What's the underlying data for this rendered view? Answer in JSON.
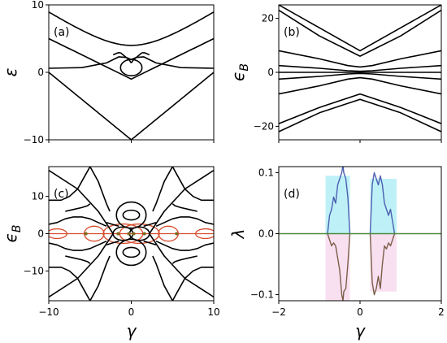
{
  "chart_data": [
    {
      "panel": "(a)",
      "type": "line",
      "ylabel": "ε",
      "xlabel": "",
      "xlim": [
        -10,
        10
      ],
      "ylim": [
        -10,
        10
      ],
      "yticks": [
        "-10",
        "0",
        "10"
      ],
      "xticks": [],
      "series": [
        {
          "kind": "hyperbola",
          "a": 4.0,
          "b": 0.4,
          "sign": 1
        },
        {
          "kind": "line_abs",
          "slope": 0.8,
          "offset": -10
        },
        {
          "kind": "line_abs",
          "slope": 0.6,
          "offset": -1
        },
        {
          "kind": "points",
          "x": [
            -10,
            -6,
            -3,
            -1.5,
            -0.6,
            0,
            0.6,
            1.5,
            3,
            6,
            10
          ],
          "y": [
            0.6,
            0.7,
            1.4,
            2.3,
            2.2,
            1.9,
            2.2,
            2.3,
            1.4,
            0.7,
            0.6
          ]
        },
        {
          "kind": "loop",
          "cx": 0,
          "cy": 0.7,
          "rx": 1.3,
          "ry": 1.2
        },
        {
          "kind": "points",
          "x": [
            -1.3,
            -0.8,
            -0.3,
            0
          ],
          "y": [
            2.9,
            2.4,
            1.9,
            1.4
          ]
        },
        {
          "kind": "points",
          "x": [
            1.3,
            0.8,
            0.3,
            0
          ],
          "y": [
            2.9,
            2.4,
            1.9,
            1.4
          ]
        },
        {
          "kind": "points",
          "x": [
            -2.2,
            -1.6,
            -1.3
          ],
          "y": [
            2.6,
            2.9,
            2.9
          ]
        },
        {
          "kind": "points",
          "x": [
            2.2,
            1.6,
            1.3
          ],
          "y": [
            2.6,
            2.9,
            2.9
          ]
        }
      ]
    },
    {
      "panel": "(b)",
      "type": "line",
      "ylabel": "ϵB",
      "xlabel": "",
      "xlim": [
        -2,
        2
      ],
      "ylim": [
        -25,
        25
      ],
      "yticks": [
        "-20",
        "0",
        "20"
      ],
      "xticks": [],
      "series": [
        {
          "kind": "points",
          "x": [
            -2,
            -1,
            0,
            1,
            2
          ],
          "y": [
            25,
            16.5,
            8,
            16.5,
            25
          ]
        },
        {
          "kind": "points",
          "x": [
            -2,
            -1,
            0,
            1,
            2
          ],
          "y": [
            23,
            13.5,
            6,
            13.5,
            23
          ]
        },
        {
          "kind": "points",
          "x": [
            -2,
            -1,
            -0.3,
            0,
            0.3,
            1,
            2
          ],
          "y": [
            8,
            5,
            2.5,
            2,
            2.5,
            5,
            8
          ]
        },
        {
          "kind": "points",
          "x": [
            -2,
            -1,
            -0.3,
            0,
            0.3,
            1,
            2
          ],
          "y": [
            2.5,
            1.5,
            0.6,
            0.4,
            0.6,
            1.5,
            2.5
          ]
        },
        {
          "kind": "points",
          "x": [
            -2,
            2
          ],
          "y": [
            0,
            0
          ]
        },
        {
          "kind": "points",
          "x": [
            -2,
            -1,
            -0.3,
            0,
            0.3,
            1,
            2
          ],
          "y": [
            -2.5,
            -1.5,
            -0.6,
            -0.4,
            -0.6,
            -1.5,
            -2.5
          ]
        },
        {
          "kind": "points",
          "x": [
            -2,
            -1,
            -0.3,
            0,
            0.3,
            1,
            2
          ],
          "y": [
            -8,
            -5,
            -2.5,
            -2,
            -2.5,
            -5,
            -8
          ]
        },
        {
          "kind": "points",
          "x": [
            -2,
            -1,
            0,
            1,
            2
          ],
          "y": [
            -19,
            -13,
            -8,
            -13,
            -19
          ]
        },
        {
          "kind": "points",
          "x": [
            -2,
            -1,
            0,
            1,
            2
          ],
          "y": [
            -22,
            -15,
            -10,
            -15,
            -22
          ]
        }
      ]
    },
    {
      "panel": "(c)",
      "type": "line",
      "ylabel": "ϵB",
      "xlabel": "γ",
      "xlim": [
        -10,
        10
      ],
      "ylim": [
        -18,
        18
      ],
      "yticks": [
        "-10",
        "0",
        "10"
      ],
      "xticks": [
        "-10",
        "0",
        "10"
      ],
      "series": [
        {
          "kind": "points",
          "x": [
            -10,
            -6.5,
            -4,
            -2.8,
            -2.2
          ],
          "y": [
            -17,
            -12,
            -6,
            -2,
            0
          ]
        },
        {
          "kind": "points",
          "x": [
            -10,
            -6.5,
            -4,
            -2.8,
            -2.2
          ],
          "y": [
            17,
            12,
            6,
            2,
            0
          ]
        },
        {
          "kind": "points",
          "x": [
            10,
            6.5,
            4,
            2.8,
            2.2
          ],
          "y": [
            -17,
            -12,
            -6,
            -2,
            0
          ]
        },
        {
          "kind": "points",
          "x": [
            10,
            6.5,
            4,
            2.8,
            2.2
          ],
          "y": [
            17,
            12,
            6,
            2,
            0
          ]
        },
        {
          "kind": "points",
          "x": [
            -10,
            -8.5,
            -7.5,
            -6.5,
            -6,
            -5.5,
            -5
          ],
          "y": [
            9,
            9,
            10,
            12,
            14,
            16,
            18
          ]
        },
        {
          "kind": "points",
          "x": [
            10,
            8.5,
            7.5,
            6.5,
            6,
            5.5,
            5
          ],
          "y": [
            9,
            9,
            10,
            12,
            14,
            16,
            18
          ]
        },
        {
          "kind": "points",
          "x": [
            -10,
            -8.5,
            -7.5,
            -6.5,
            -6,
            -5.5,
            -5
          ],
          "y": [
            -9,
            -9,
            -10,
            -12,
            -14,
            -16,
            -18
          ]
        },
        {
          "kind": "points",
          "x": [
            10,
            8.5,
            7.5,
            6.5,
            6,
            5.5,
            5
          ],
          "y": [
            -9,
            -9,
            -10,
            -12,
            -14,
            -16,
            -18
          ]
        },
        {
          "kind": "points",
          "x": [
            -5,
            -4,
            -3.5,
            -3,
            -2.6
          ],
          "y": [
            18,
            14,
            11,
            8,
            6
          ]
        },
        {
          "kind": "points",
          "x": [
            5,
            4,
            3.5,
            3,
            2.6
          ],
          "y": [
            18,
            14,
            11,
            8,
            6
          ]
        },
        {
          "kind": "points",
          "x": [
            -5,
            -4,
            -3.5,
            -3,
            -2.6
          ],
          "y": [
            -18,
            -14,
            -11,
            -8,
            -6
          ]
        },
        {
          "kind": "points",
          "x": [
            5,
            4,
            3.5,
            3,
            2.6
          ],
          "y": [
            -18,
            -14,
            -11,
            -8,
            -6
          ]
        },
        {
          "kind": "points",
          "x": [
            -10,
            -9,
            -8,
            -7,
            -6,
            -5,
            -4,
            -3
          ],
          "y": [
            2.5,
            3,
            4,
            4.5,
            4.5,
            4,
            3,
            2
          ]
        },
        {
          "kind": "points",
          "x": [
            10,
            9,
            8,
            7,
            6,
            5,
            4,
            3
          ],
          "y": [
            2.5,
            3,
            4,
            4.5,
            4.5,
            4,
            3,
            2
          ]
        },
        {
          "kind": "points",
          "x": [
            -10,
            -9,
            -8,
            -7,
            -6,
            -5,
            -4,
            -3
          ],
          "y": [
            -2.5,
            -3,
            -4,
            -4.5,
            -4.5,
            -4,
            -3,
            -2
          ]
        },
        {
          "kind": "points",
          "x": [
            10,
            9,
            8,
            7,
            6,
            5,
            4,
            3
          ],
          "y": [
            -2.5,
            -3,
            -4,
            -4.5,
            -4.5,
            -4,
            -3,
            -2
          ]
        },
        {
          "kind": "points",
          "x": [
            -8,
            -7,
            -6,
            -5.3,
            -5
          ],
          "y": [
            6,
            6.5,
            7,
            7.5,
            8
          ]
        },
        {
          "kind": "points",
          "x": [
            8,
            7,
            6,
            5.3,
            5
          ],
          "y": [
            6,
            6.5,
            7,
            7.5,
            8
          ]
        },
        {
          "kind": "points",
          "x": [
            -8,
            -7,
            -6,
            -5.3,
            -5
          ],
          "y": [
            -6,
            -6.5,
            -7,
            -7.5,
            -8
          ]
        },
        {
          "kind": "points",
          "x": [
            8,
            7,
            6,
            5.3,
            5
          ],
          "y": [
            -6,
            -6.5,
            -7,
            -7.5,
            -8
          ]
        },
        {
          "kind": "loop",
          "cx": 0,
          "cy": 5,
          "rx": 1.8,
          "ry": 3.5
        },
        {
          "kind": "loop",
          "cx": 0,
          "cy": -5,
          "rx": 1.8,
          "ry": 3.5
        },
        {
          "kind": "loop",
          "cx": 0,
          "cy": 5,
          "rx": 1.0,
          "ry": 1.3
        },
        {
          "kind": "loop",
          "cx": 0,
          "cy": -5,
          "rx": 1.0,
          "ry": 1.3
        },
        {
          "kind": "loop",
          "cx": -1,
          "cy": 0,
          "rx": 1.2,
          "ry": 1.8
        },
        {
          "kind": "loop",
          "cx": 1,
          "cy": 0,
          "rx": 1.2,
          "ry": 1.8
        },
        {
          "kind": "points",
          "x": [
            -3,
            -2.3,
            -1.5
          ],
          "y": [
            3,
            2.5,
            2
          ]
        },
        {
          "kind": "points",
          "x": [
            3,
            2.3,
            1.5
          ],
          "y": [
            3,
            2.5,
            2
          ]
        },
        {
          "kind": "points",
          "x": [
            -3,
            -2.3,
            -1.5
          ],
          "y": [
            -3,
            -2.5,
            -2
          ]
        },
        {
          "kind": "points",
          "x": [
            3,
            2.3,
            1.5
          ],
          "y": [
            -3,
            -2.5,
            -2
          ]
        }
      ],
      "red_series": [
        {
          "kind": "points",
          "x": [
            -10,
            10
          ],
          "y": [
            0,
            0
          ]
        },
        {
          "kind": "loop",
          "cx": -9,
          "cy": 0,
          "rx": 1.2,
          "ry": 1.3
        },
        {
          "kind": "loop",
          "cx": 9,
          "cy": 0,
          "rx": 1.2,
          "ry": 1.3
        },
        {
          "kind": "loop",
          "cx": -1,
          "cy": 0,
          "rx": 2.4,
          "ry": 2.6
        },
        {
          "kind": "loop",
          "cx": 1,
          "cy": 0,
          "rx": 2.4,
          "ry": 2.6
        },
        {
          "kind": "loop",
          "cx": -4.5,
          "cy": 0,
          "rx": 1.2,
          "ry": 2.0
        },
        {
          "kind": "loop",
          "cx": 4.5,
          "cy": 0,
          "rx": 1.2,
          "ry": 2.0
        }
      ],
      "dots": {
        "x": [
          -5.5,
          -1.6,
          -0.3,
          0.3,
          1.6,
          5.5
        ],
        "y": [
          0,
          0,
          0,
          0,
          0,
          0
        ]
      }
    },
    {
      "panel": "(d)",
      "type": "line",
      "ylabel": "λ",
      "xlabel": "γ",
      "xlim": [
        -2,
        2
      ],
      "ylim": [
        -0.11,
        0.11
      ],
      "yticks": [
        "-0.1",
        "0.0",
        "0.1"
      ],
      "xticks": [
        "-2",
        "0",
        "2"
      ],
      "series": [
        {
          "name": "",
          "color": "#4c5fb0",
          "x": [
            -0.8,
            -0.75,
            -0.7,
            -0.65,
            -0.6,
            -0.55,
            -0.5,
            -0.45,
            -0.42,
            -0.4,
            -0.35,
            -0.3,
            -0.25
          ],
          "y": [
            0.0,
            0.03,
            0.04,
            0.06,
            0.05,
            0.08,
            0.09,
            0.1,
            0.112,
            0.1,
            0.09,
            0.06,
            0.0
          ]
        },
        {
          "name": "",
          "color": "#4c5fb0",
          "x": [
            0.25,
            0.3,
            0.35,
            0.4,
            0.45,
            0.5,
            0.55,
            0.6,
            0.65,
            0.7,
            0.75,
            0.8,
            0.85
          ],
          "y": [
            0.0,
            0.08,
            0.1,
            0.09,
            0.08,
            0.095,
            0.08,
            0.05,
            0.04,
            0.03,
            0.04,
            0.02,
            0.0
          ]
        },
        {
          "name": "",
          "color": "#7a5e48",
          "x": [
            -0.8,
            -0.75,
            -0.7,
            -0.65,
            -0.6,
            -0.55,
            -0.5,
            -0.45,
            -0.42,
            -0.4,
            -0.35,
            -0.3,
            -0.25
          ],
          "y": [
            0.0,
            -0.01,
            -0.02,
            -0.015,
            -0.02,
            -0.04,
            -0.06,
            -0.1,
            -0.11,
            -0.095,
            -0.09,
            -0.05,
            0.0
          ]
        },
        {
          "name": "",
          "color": "#7a5e48",
          "x": [
            0.25,
            0.3,
            0.35,
            0.4,
            0.45,
            0.5,
            0.55,
            0.6,
            0.65,
            0.7,
            0.75,
            0.8,
            0.85
          ],
          "y": [
            0.0,
            -0.08,
            -0.1,
            -0.09,
            -0.07,
            -0.09,
            -0.05,
            -0.02,
            -0.025,
            -0.015,
            -0.02,
            -0.01,
            0.0
          ]
        },
        {
          "name": "",
          "color": "#4c8a3a",
          "x": [
            -2,
            2
          ],
          "y": [
            0,
            0
          ]
        }
      ],
      "shading": [
        {
          "color": "#aeeef5",
          "x0": -0.85,
          "x1": -0.25,
          "y0": 0,
          "y1": 0.095
        },
        {
          "color": "#aeeef5",
          "x0": 0.25,
          "x1": 0.9,
          "y0": 0,
          "y1": 0.09
        },
        {
          "color": "#f8d8ee",
          "x0": -0.85,
          "x1": -0.25,
          "y0": -0.11,
          "y1": 0
        },
        {
          "color": "#f8d8ee",
          "x0": 0.25,
          "x1": 0.9,
          "y0": -0.095,
          "y1": 0
        }
      ]
    }
  ]
}
